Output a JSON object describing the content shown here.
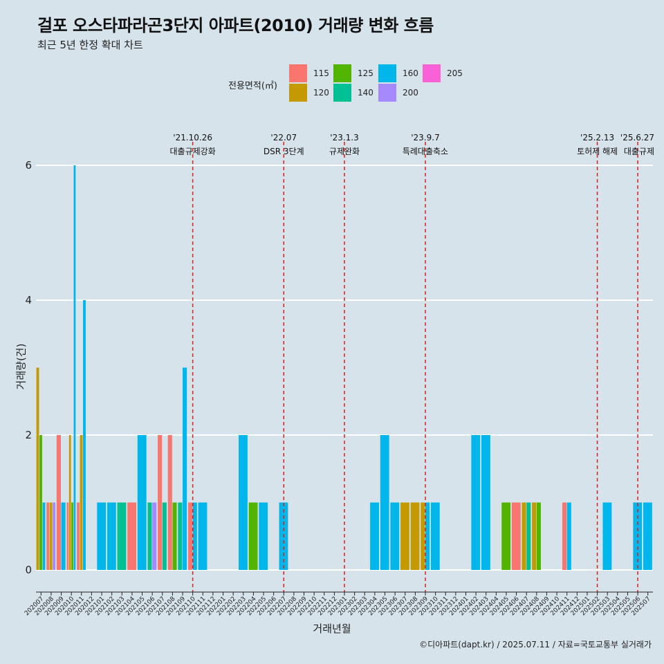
{
  "header": {
    "title": "걸포 오스타파라곤3단지 아파트(2010) 거래량 변화 흐름",
    "subtitle": "최근 5년 한정 확대 차트"
  },
  "legend": {
    "title": "전용면적(㎡)",
    "items": [
      {
        "label": "115",
        "color": "#f8766d"
      },
      {
        "label": "120",
        "color": "#c49a00"
      },
      {
        "label": "125",
        "color": "#53b400"
      },
      {
        "label": "140",
        "color": "#00c094"
      },
      {
        "label": "160",
        "color": "#00b6eb"
      },
      {
        "label": "200",
        "color": "#a58aff"
      },
      {
        "label": "205",
        "color": "#fb61d7"
      }
    ]
  },
  "caption": "©디아파트(dapt.kr) / 2025.07.11 / 자료=국토교통부 실거래가",
  "chart_data": {
    "type": "bar",
    "stacked": false,
    "xlabel": "거래년월",
    "ylabel": "거래량(건)",
    "ylim": [
      0,
      6.3
    ],
    "yticks": [
      0,
      2,
      4,
      6
    ],
    "grid": "horizontal",
    "legend_position": "top",
    "categories": [
      "202007",
      "202008",
      "202009",
      "202010",
      "202011",
      "202012",
      "202101",
      "202102",
      "202103",
      "202104",
      "202105",
      "202106",
      "202107",
      "202108",
      "202109",
      "202110",
      "202111",
      "202112",
      "202201",
      "202202",
      "202203",
      "202204",
      "202205",
      "202206",
      "202207",
      "202208",
      "202209",
      "202210",
      "202211",
      "202212",
      "202301",
      "202302",
      "202303",
      "202304",
      "202305",
      "202306",
      "202307",
      "202308",
      "202309",
      "202310",
      "202311",
      "202312",
      "202401",
      "202402",
      "202403",
      "202404",
      "202405",
      "202406",
      "202407",
      "202408",
      "202409",
      "202410",
      "202411",
      "202412",
      "202501",
      "202502",
      "202503",
      "202504",
      "202505",
      "202506",
      "202507"
    ],
    "bars": [
      {
        "month": "202007",
        "values": [
          {
            "area": "120",
            "count": 3
          },
          {
            "area": "125",
            "count": 2
          },
          {
            "area": "160",
            "count": 1
          }
        ]
      },
      {
        "month": "202008",
        "values": [
          {
            "area": "115",
            "count": 1
          },
          {
            "area": "120",
            "count": 1
          },
          {
            "area": "200",
            "count": 1
          }
        ]
      },
      {
        "month": "202009",
        "values": [
          {
            "area": "115",
            "count": 2
          },
          {
            "area": "160",
            "count": 1
          }
        ]
      },
      {
        "month": "202010",
        "values": [
          {
            "area": "115",
            "count": 1
          },
          {
            "area": "120",
            "count": 2
          },
          {
            "area": "125",
            "count": 1
          },
          {
            "area": "160",
            "count": 6
          }
        ]
      },
      {
        "month": "202011",
        "values": [
          {
            "area": "115",
            "count": 1
          },
          {
            "area": "120",
            "count": 2
          },
          {
            "area": "160",
            "count": 4
          }
        ]
      },
      {
        "month": "202101",
        "values": [
          {
            "area": "160",
            "count": 1
          }
        ]
      },
      {
        "month": "202102",
        "values": [
          {
            "area": "160",
            "count": 1
          }
        ]
      },
      {
        "month": "202103",
        "values": [
          {
            "area": "140",
            "count": 1
          }
        ]
      },
      {
        "month": "202104",
        "values": [
          {
            "area": "115",
            "count": 1
          }
        ]
      },
      {
        "month": "202105",
        "values": [
          {
            "area": "160",
            "count": 2
          }
        ]
      },
      {
        "month": "202106",
        "values": [
          {
            "area": "140",
            "count": 1
          },
          {
            "area": "200",
            "count": 1
          }
        ]
      },
      {
        "month": "202107",
        "values": [
          {
            "area": "115",
            "count": 2
          },
          {
            "area": "140",
            "count": 1
          }
        ]
      },
      {
        "month": "202108",
        "values": [
          {
            "area": "115",
            "count": 2
          },
          {
            "area": "125",
            "count": 1
          }
        ]
      },
      {
        "month": "202109",
        "values": [
          {
            "area": "140",
            "count": 1
          },
          {
            "area": "160",
            "count": 3
          }
        ]
      },
      {
        "month": "202110",
        "values": [
          {
            "area": "115",
            "count": 1
          },
          {
            "area": "160",
            "count": 1
          }
        ]
      },
      {
        "month": "202111",
        "values": [
          {
            "area": "160",
            "count": 1
          }
        ]
      },
      {
        "month": "202203",
        "values": [
          {
            "area": "160",
            "count": 2
          }
        ]
      },
      {
        "month": "202204",
        "values": [
          {
            "area": "125",
            "count": 1
          }
        ]
      },
      {
        "month": "202205",
        "values": [
          {
            "area": "160",
            "count": 1
          }
        ]
      },
      {
        "month": "202207",
        "values": [
          {
            "area": "160",
            "count": 1
          }
        ]
      },
      {
        "month": "202304",
        "values": [
          {
            "area": "160",
            "count": 1
          }
        ]
      },
      {
        "month": "202305",
        "values": [
          {
            "area": "160",
            "count": 2
          }
        ]
      },
      {
        "month": "202306",
        "values": [
          {
            "area": "160",
            "count": 1
          }
        ]
      },
      {
        "month": "202307",
        "values": [
          {
            "area": "120",
            "count": 1
          }
        ]
      },
      {
        "month": "202308",
        "values": [
          {
            "area": "120",
            "count": 1
          }
        ]
      },
      {
        "month": "202309",
        "values": [
          {
            "area": "120",
            "count": 1
          },
          {
            "area": "160",
            "count": 1
          }
        ]
      },
      {
        "month": "202310",
        "values": [
          {
            "area": "160",
            "count": 1
          }
        ]
      },
      {
        "month": "202402",
        "values": [
          {
            "area": "160",
            "count": 2
          }
        ]
      },
      {
        "month": "202403",
        "values": [
          {
            "area": "160",
            "count": 2
          }
        ]
      },
      {
        "month": "202405",
        "values": [
          {
            "area": "125",
            "count": 1
          }
        ]
      },
      {
        "month": "202406",
        "values": [
          {
            "area": "115",
            "count": 1
          }
        ]
      },
      {
        "month": "202407",
        "values": [
          {
            "area": "120",
            "count": 1
          },
          {
            "area": "140",
            "count": 1
          }
        ]
      },
      {
        "month": "202408",
        "values": [
          {
            "area": "120",
            "count": 1
          },
          {
            "area": "125",
            "count": 1
          }
        ]
      },
      {
        "month": "202411",
        "values": [
          {
            "area": "115",
            "count": 1
          },
          {
            "area": "160",
            "count": 1
          }
        ]
      },
      {
        "month": "202503",
        "values": [
          {
            "area": "160",
            "count": 1
          }
        ]
      },
      {
        "month": "202506",
        "values": [
          {
            "area": "160",
            "count": 1
          }
        ]
      },
      {
        "month": "202507",
        "values": [
          {
            "area": "160",
            "count": 1
          }
        ]
      }
    ],
    "events": [
      {
        "month": "202110",
        "date": "'21.10.26",
        "label": "대출규제강화"
      },
      {
        "month": "202207",
        "date": "'22.07",
        "label": "DSR 3단계"
      },
      {
        "month": "202301",
        "date": "'23.1.3",
        "label": "규제완화"
      },
      {
        "month": "202309",
        "date": "'23.9.7",
        "label": "특례대출축소"
      },
      {
        "month": "202502",
        "date": "'25.2.13",
        "label": "토허제 해제"
      },
      {
        "month": "202506",
        "date": "'25.6.27",
        "label": "대출규제"
      }
    ],
    "event_line_color": "#e8191a"
  }
}
